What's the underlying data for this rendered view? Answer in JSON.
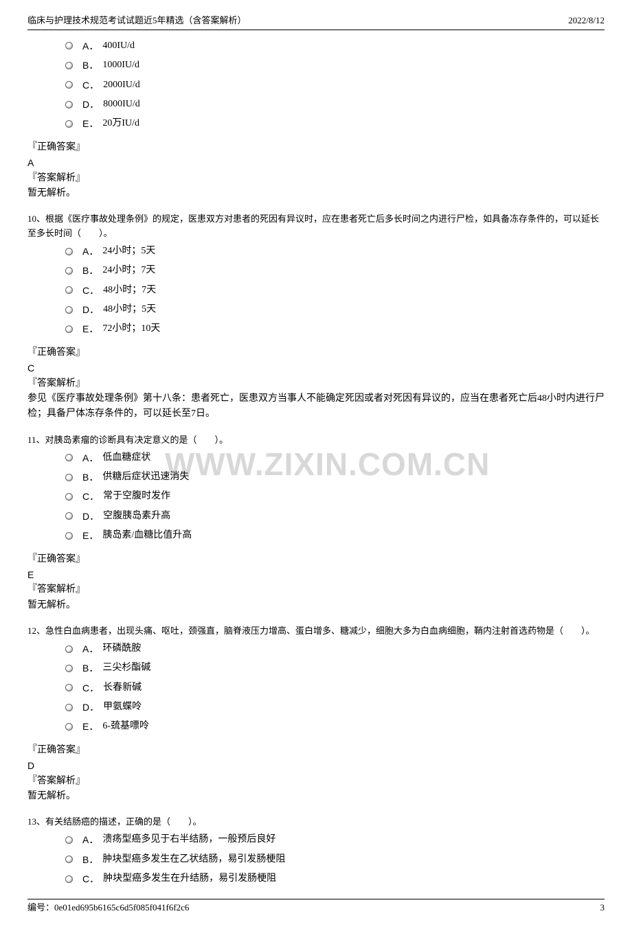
{
  "header": {
    "title": "临床与护理技术规范考试试题近5年精选（含答案解析）",
    "date": "2022/8/12"
  },
  "watermark": "WWW.ZIXIN.COM.CN",
  "questions": [
    {
      "stem": "",
      "options": [
        {
          "label": "A．",
          "text": "400IU/d"
        },
        {
          "label": "B．",
          "text": "1000IU/d"
        },
        {
          "label": "C．",
          "text": "2000IU/d"
        },
        {
          "label": "D．",
          "text": "8000IU/d"
        },
        {
          "label": "E．",
          "text": "20万IU/d"
        }
      ],
      "answer_header": "『正确答案』",
      "answer": "A",
      "analysis_header": "『答案解析』",
      "analysis": "暂无解析。"
    },
    {
      "stem": "10、根据《医疗事故处理条例》的规定，医患双方对患者的死因有异议时，应在患者死亡后多长时间之内进行尸检，如具备冻存条件的，可以延长至多长时间（　　）。",
      "options": [
        {
          "label": "A．",
          "text": "24小时；5天"
        },
        {
          "label": "B．",
          "text": "24小时；7天"
        },
        {
          "label": "C．",
          "text": "48小时；7天"
        },
        {
          "label": "D．",
          "text": "48小时；5天"
        },
        {
          "label": "E．",
          "text": "72小时；10天"
        }
      ],
      "answer_header": "『正确答案』",
      "answer": "C",
      "analysis_header": "『答案解析』",
      "analysis": "参见《医疗事故处理条例》第十八条：患者死亡，医患双方当事人不能确定死因或者对死因有异议的，应当在患者死亡后48小时内进行尸检；具备尸体冻存条件的，可以延长至7日。"
    },
    {
      "stem": "11、对胰岛素瘤的诊断具有决定意义的是（　　）。",
      "options": [
        {
          "label": "A．",
          "text": "低血糖症状"
        },
        {
          "label": "B．",
          "text": "供糖后症状迅速消失"
        },
        {
          "label": "C．",
          "text": "常于空腹时发作"
        },
        {
          "label": "D．",
          "text": "空腹胰岛素升高"
        },
        {
          "label": "E．",
          "text": "胰岛素/血糖比值升高"
        }
      ],
      "answer_header": "『正确答案』",
      "answer": "E",
      "analysis_header": "『答案解析』",
      "analysis": "暂无解析。"
    },
    {
      "stem": "12、急性白血病患者，出现头痛、呕吐，颈强直，脑脊液压力增高、蛋白增多、糖减少，细胞大多为白血病细胞，鞘内注射首选药物是（　　）。",
      "options": [
        {
          "label": "A．",
          "text": "环磷酰胺"
        },
        {
          "label": "B．",
          "text": "三尖杉酯碱"
        },
        {
          "label": "C．",
          "text": "长春新碱"
        },
        {
          "label": "D．",
          "text": "甲氨蝶呤"
        },
        {
          "label": "E．",
          "text": "6-巯基嘌呤"
        }
      ],
      "answer_header": "『正确答案』",
      "answer": "D",
      "analysis_header": "『答案解析』",
      "analysis": "暂无解析。"
    },
    {
      "stem": "13、有关结肠癌的描述，正确的是（　　）。",
      "options": [
        {
          "label": "A．",
          "text": "溃疡型癌多见于右半结肠，一般预后良好"
        },
        {
          "label": "B．",
          "text": "肿块型癌多发生在乙状结肠，易引发肠梗阻"
        },
        {
          "label": "C．",
          "text": "肿块型癌多发生在升结肠，易引发肠梗阻"
        }
      ],
      "answer_header": "",
      "answer": "",
      "analysis_header": "",
      "analysis": ""
    }
  ],
  "footer": {
    "serial_label": "编号：",
    "serial": "0e01ed695b6165c6d5f085f041f6f2c6",
    "page": "3"
  }
}
